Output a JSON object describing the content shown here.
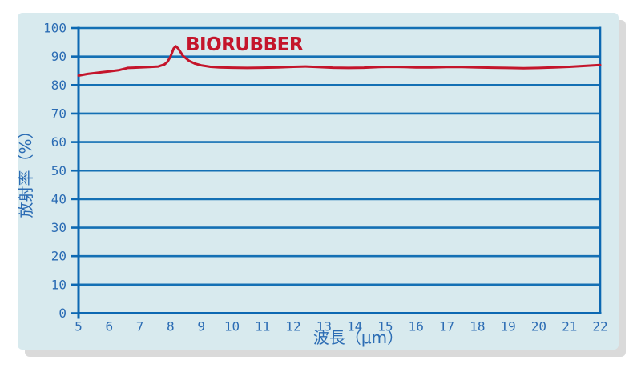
{
  "card": {
    "background_color": "#d8eaee",
    "shadow_color": "#dadada"
  },
  "colors": {
    "axis_line_blue": "#0c68b2",
    "grid_line_blue": "#1470b4",
    "label_text_blue": "#2b6cb4",
    "series_red": "#c4152b"
  },
  "chart_data": {
    "type": "line",
    "title": "",
    "xlabel": "波長（μm）",
    "ylabel": "放射率（%）",
    "xlim": [
      5,
      22
    ],
    "ylim": [
      0,
      100
    ],
    "xticks": [
      5,
      6,
      7,
      8,
      9,
      10,
      11,
      12,
      13,
      14,
      15,
      16,
      17,
      18,
      19,
      20,
      21,
      22
    ],
    "yticks": [
      0,
      10,
      20,
      30,
      40,
      50,
      60,
      70,
      80,
      90,
      100
    ],
    "grid": "horizontal",
    "legend_position": "none",
    "annotation": {
      "label": "BIORUBBER",
      "x": 8.5,
      "y": 92.2
    },
    "series": [
      {
        "name": "BIORUBBER",
        "color": "#c4152b",
        "points": [
          [
            5.0,
            83.3
          ],
          [
            5.3,
            83.9
          ],
          [
            5.6,
            84.3
          ],
          [
            6.0,
            84.8
          ],
          [
            6.3,
            85.2
          ],
          [
            6.6,
            86.0
          ],
          [
            6.8,
            86.1
          ],
          [
            7.0,
            86.2
          ],
          [
            7.3,
            86.3
          ],
          [
            7.6,
            86.5
          ],
          [
            7.8,
            87.2
          ],
          [
            7.9,
            88.2
          ],
          [
            8.0,
            90.0
          ],
          [
            8.1,
            92.8
          ],
          [
            8.17,
            93.6
          ],
          [
            8.25,
            92.8
          ],
          [
            8.4,
            90.3
          ],
          [
            8.6,
            88.5
          ],
          [
            8.8,
            87.5
          ],
          [
            9.0,
            86.9
          ],
          [
            9.3,
            86.4
          ],
          [
            9.6,
            86.2
          ],
          [
            10.0,
            86.1
          ],
          [
            10.5,
            86.0
          ],
          [
            11.0,
            86.1
          ],
          [
            11.5,
            86.2
          ],
          [
            12.0,
            86.4
          ],
          [
            12.4,
            86.5
          ],
          [
            12.8,
            86.3
          ],
          [
            13.3,
            86.1
          ],
          [
            13.8,
            86.0
          ],
          [
            14.3,
            86.1
          ],
          [
            14.8,
            86.3
          ],
          [
            15.2,
            86.4
          ],
          [
            15.6,
            86.3
          ],
          [
            16.0,
            86.2
          ],
          [
            16.5,
            86.2
          ],
          [
            17.0,
            86.3
          ],
          [
            17.5,
            86.3
          ],
          [
            18.0,
            86.2
          ],
          [
            18.5,
            86.1
          ],
          [
            19.0,
            86.0
          ],
          [
            19.5,
            85.9
          ],
          [
            20.0,
            86.0
          ],
          [
            20.5,
            86.2
          ],
          [
            21.0,
            86.4
          ],
          [
            21.5,
            86.7
          ],
          [
            22.0,
            87.0
          ]
        ]
      }
    ]
  }
}
